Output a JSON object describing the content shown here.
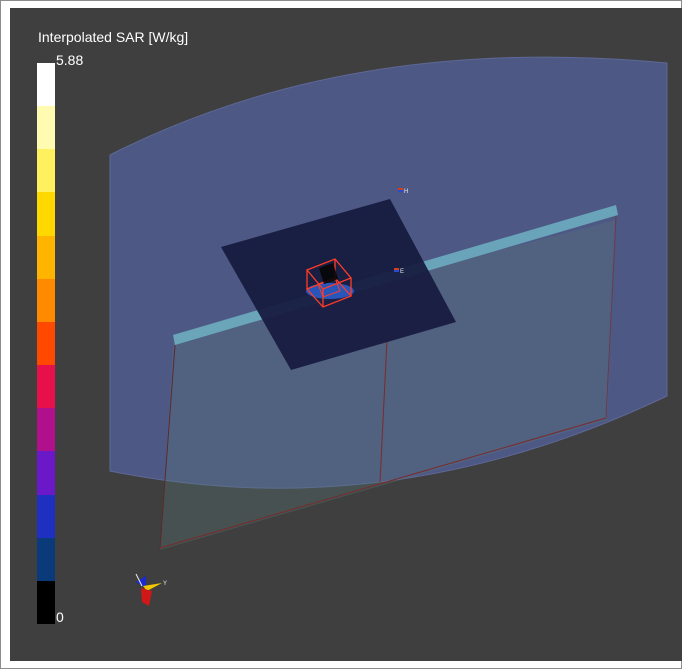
{
  "legend": {
    "title": "Interpolated SAR [W/kg]",
    "max_label": "5.88",
    "min_label": "0",
    "colors": [
      "#ffffff",
      "#fffbb0",
      "#fff060",
      "#ffd800",
      "#ffb400",
      "#ff8a00",
      "#ff4800",
      "#e8104a",
      "#b0108c",
      "#6a18c8",
      "#1f2fc0",
      "#0a3a7a",
      "#000000"
    ]
  },
  "scene": {
    "probe_labels": [
      "H",
      "E"
    ],
    "axis_labels": [
      "Y"
    ],
    "colors": {
      "viewport_background": "#3f3f3f",
      "phantom_volume": "#4f5a8a",
      "substrate_slab": "#6fb2c4",
      "measurement_plane": "#161a3e",
      "evaluation_box": "#ff3c28"
    }
  }
}
